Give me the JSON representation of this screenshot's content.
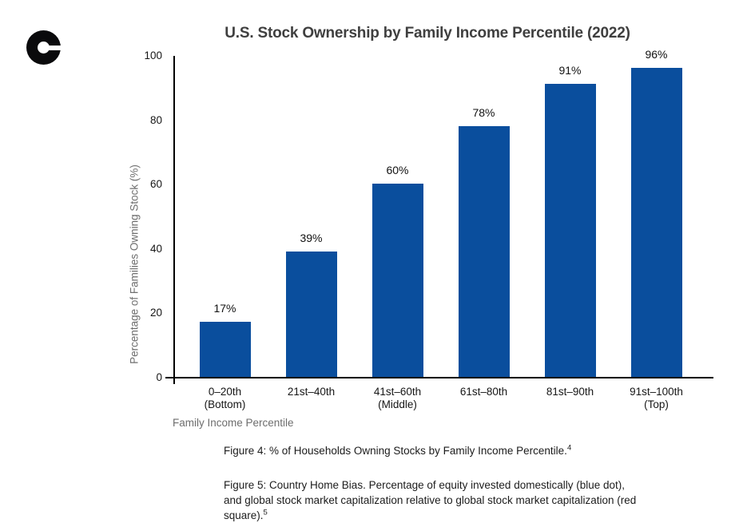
{
  "logo": {
    "name": "coinbase-c-logo"
  },
  "chart_data": {
    "type": "bar",
    "title": "U.S. Stock Ownership by Family Income Percentile (2022)",
    "categories": [
      "0–20th\n(Bottom)",
      "21st–40th",
      "41st–60th\n(Middle)",
      "61st–80th",
      "81st–90th",
      "91st–100th\n(Top)"
    ],
    "values": [
      17,
      39,
      60,
      78,
      91,
      96
    ],
    "bar_labels": [
      "17%",
      "39%",
      "60%",
      "78%",
      "91%",
      "96%"
    ],
    "xlabel": "Family Income Percentile",
    "ylabel": "Percentage of Families Owning Stock (%)",
    "ylim": [
      0,
      100
    ],
    "yticks": [
      0,
      20,
      40,
      60,
      80,
      100
    ],
    "bar_color": "#0a4e9d",
    "grid": false,
    "legend_position": "none"
  },
  "captions": {
    "figure4": {
      "text": "Figure 4: % of Households Owning Stocks by Family Income Percentile.",
      "superscript": "4"
    },
    "figure5": {
      "text": "Figure 5: Country Home Bias. Percentage of equity invested domestically (blue dot), and global stock market capitalization relative to global stock market capitalization (red square).",
      "superscript": "5"
    }
  }
}
